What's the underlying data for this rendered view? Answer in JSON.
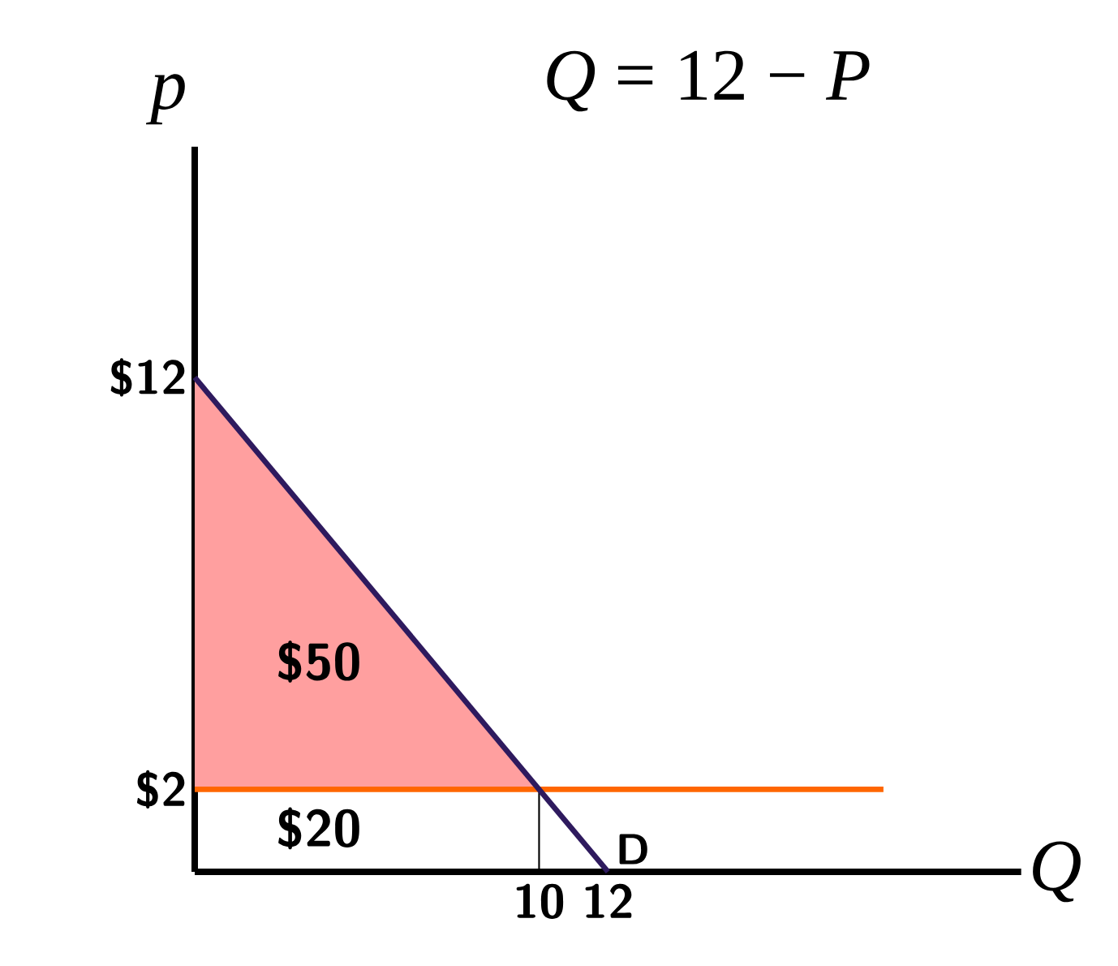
{
  "chart_data": {
    "type": "line",
    "title": "*Q* = 12 − *P*",
    "xlabel": "Q",
    "ylabel": "p",
    "xlim": [
      0,
      24
    ],
    "ylim": [
      0,
      17.6
    ],
    "xticks": [
      10,
      12
    ],
    "yticks": [
      {
        "value": 2,
        "label": "$2"
      },
      {
        "value": 12,
        "label": "$12"
      }
    ],
    "series": [
      {
        "type": "area",
        "color": "#ff9f9f",
        "x": [
          0,
          10,
          0
        ],
        "values": [
          12,
          2,
          2
        ]
      },
      {
        "color": "#000000",
        "x": [
          10,
          10
        ],
        "values": [
          0,
          2
        ]
      },
      {
        "color": "#ff6600",
        "x": [
          0,
          20
        ],
        "values": [
          2,
          2
        ]
      },
      {
        "name": "D",
        "color": "#2e1a5e",
        "x": [
          0,
          12
        ],
        "values": [
          12,
          0
        ]
      }
    ],
    "annotations": [
      "$50",
      "$20"
    ]
  }
}
